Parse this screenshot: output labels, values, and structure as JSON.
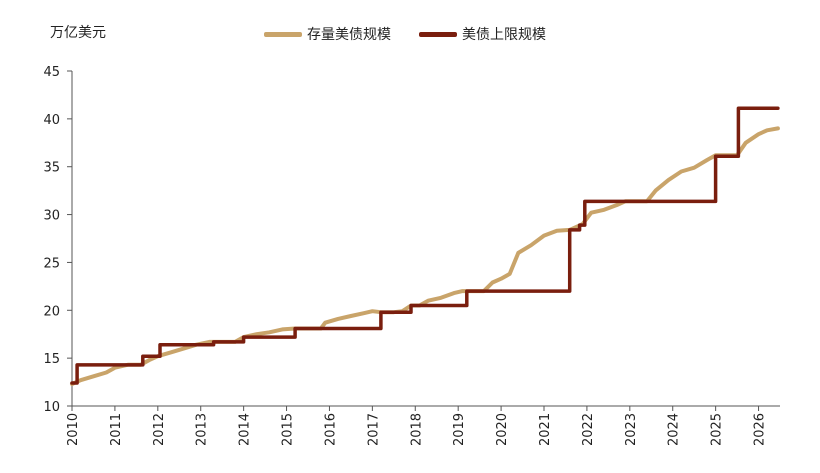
{
  "chart_data": {
    "type": "line",
    "title": "",
    "unit_label": "万亿美元",
    "xlabel": "",
    "ylabel": "",
    "xlim": [
      2010,
      2026.5
    ],
    "ylim": [
      10,
      45
    ],
    "y_ticks": [
      10,
      15,
      20,
      25,
      30,
      35,
      40,
      45
    ],
    "x_ticks": [
      2010,
      2011,
      2012,
      2013,
      2014,
      2015,
      2016,
      2017,
      2018,
      2019,
      2020,
      2021,
      2022,
      2023,
      2024,
      2025,
      2026
    ],
    "x_tick_labels": [
      "2010",
      "2011",
      "2012",
      "2013",
      "2014",
      "2015",
      "2016",
      "2017",
      "2018",
      "2019",
      "2020",
      "2021",
      "2022",
      "2023",
      "2024",
      "2025",
      "2026"
    ],
    "legend_position": "top",
    "grid": false,
    "series": [
      {
        "name": "存量美债规模",
        "color": "#C9A46A",
        "style": "line",
        "points": [
          [
            2010.0,
            12.3
          ],
          [
            2010.2,
            12.7
          ],
          [
            2010.5,
            13.1
          ],
          [
            2010.8,
            13.5
          ],
          [
            2011.0,
            14.0
          ],
          [
            2011.3,
            14.3
          ],
          [
            2011.6,
            14.3
          ],
          [
            2011.8,
            14.8
          ],
          [
            2012.0,
            15.2
          ],
          [
            2012.3,
            15.6
          ],
          [
            2012.6,
            16.0
          ],
          [
            2012.9,
            16.4
          ],
          [
            2013.2,
            16.7
          ],
          [
            2013.5,
            16.7
          ],
          [
            2013.8,
            16.7
          ],
          [
            2014.0,
            17.2
          ],
          [
            2014.3,
            17.5
          ],
          [
            2014.6,
            17.7
          ],
          [
            2014.9,
            18.0
          ],
          [
            2015.2,
            18.1
          ],
          [
            2015.5,
            18.1
          ],
          [
            2015.8,
            18.1
          ],
          [
            2015.9,
            18.7
          ],
          [
            2016.2,
            19.1
          ],
          [
            2016.5,
            19.4
          ],
          [
            2016.8,
            19.7
          ],
          [
            2017.0,
            19.9
          ],
          [
            2017.2,
            19.8
          ],
          [
            2017.5,
            19.8
          ],
          [
            2017.7,
            19.9
          ],
          [
            2017.9,
            20.5
          ],
          [
            2018.1,
            20.5
          ],
          [
            2018.3,
            21.0
          ],
          [
            2018.6,
            21.3
          ],
          [
            2018.9,
            21.8
          ],
          [
            2019.1,
            22.0
          ],
          [
            2019.3,
            22.0
          ],
          [
            2019.6,
            22.0
          ],
          [
            2019.8,
            22.9
          ],
          [
            2020.0,
            23.3
          ],
          [
            2020.2,
            23.8
          ],
          [
            2020.4,
            26.0
          ],
          [
            2020.7,
            26.8
          ],
          [
            2021.0,
            27.8
          ],
          [
            2021.3,
            28.3
          ],
          [
            2021.6,
            28.4
          ],
          [
            2021.9,
            29.0
          ],
          [
            2022.1,
            30.2
          ],
          [
            2022.4,
            30.5
          ],
          [
            2022.7,
            31.0
          ],
          [
            2022.9,
            31.4
          ],
          [
            2023.2,
            31.4
          ],
          [
            2023.4,
            31.4
          ],
          [
            2023.6,
            32.5
          ],
          [
            2023.9,
            33.6
          ],
          [
            2024.2,
            34.5
          ],
          [
            2024.5,
            34.9
          ],
          [
            2024.8,
            35.7
          ],
          [
            2025.0,
            36.2
          ],
          [
            2025.3,
            36.2
          ],
          [
            2025.5,
            36.2
          ],
          [
            2025.7,
            37.5
          ],
          [
            2026.0,
            38.4
          ],
          [
            2026.2,
            38.8
          ],
          [
            2026.45,
            39.0
          ]
        ]
      },
      {
        "name": "美债上限规模",
        "color": "#7A1E0E",
        "style": "step",
        "points": [
          [
            2010.0,
            12.4
          ],
          [
            2010.12,
            14.29
          ],
          [
            2011.6,
            14.29
          ],
          [
            2011.65,
            15.2
          ],
          [
            2011.95,
            15.2
          ],
          [
            2012.05,
            16.39
          ],
          [
            2013.1,
            16.39
          ],
          [
            2013.3,
            16.7
          ],
          [
            2013.75,
            16.7
          ],
          [
            2014.0,
            17.2
          ],
          [
            2015.2,
            18.1
          ],
          [
            2015.8,
            18.1
          ],
          [
            2017.2,
            19.8
          ],
          [
            2017.65,
            19.8
          ],
          [
            2017.9,
            20.5
          ],
          [
            2018.1,
            20.5
          ],
          [
            2019.2,
            22.0
          ],
          [
            2019.55,
            22.0
          ],
          [
            2021.6,
            28.4
          ],
          [
            2021.75,
            28.4
          ],
          [
            2021.83,
            28.9
          ],
          [
            2021.92,
            28.9
          ],
          [
            2021.95,
            31.38
          ],
          [
            2023.4,
            31.38
          ],
          [
            2025.0,
            36.1
          ],
          [
            2025.5,
            36.1
          ],
          [
            2025.53,
            41.1
          ],
          [
            2026.45,
            41.1
          ]
        ]
      }
    ]
  }
}
